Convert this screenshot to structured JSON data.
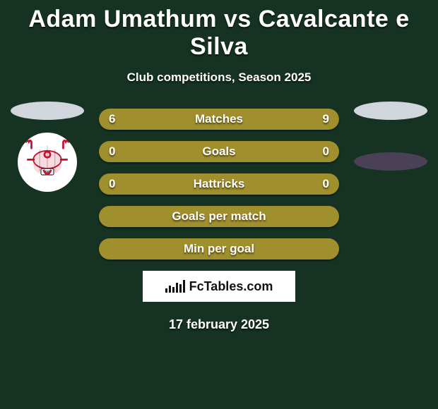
{
  "title": "Adam Umathum vs Cavalcante e Silva",
  "subtitle": "Club competitions, Season 2025",
  "date": "17 february 2025",
  "site_logo_text": "FcTables.com",
  "colors": {
    "background": "#163223",
    "left_player": "#d0d6db",
    "right_player": "#4a4057",
    "bar_fill": "#a08f2d",
    "bar_bg": "#122a1d",
    "bar_shadow": "rgba(0,0,0,0.4)"
  },
  "left_badge": {
    "bg": "#ffffff",
    "accent": "#c8102e",
    "text": "#000000"
  },
  "bars": [
    {
      "label": "Matches",
      "left_value": "6",
      "right_value": "9",
      "left_pct": 40,
      "right_pct": 60,
      "show_values": true,
      "split": true
    },
    {
      "label": "Goals",
      "left_value": "0",
      "right_value": "0",
      "left_pct": 0,
      "right_pct": 0,
      "show_values": true,
      "split": false,
      "full": true
    },
    {
      "label": "Hattricks",
      "left_value": "0",
      "right_value": "0",
      "left_pct": 0,
      "right_pct": 0,
      "show_values": true,
      "split": false,
      "full": true
    },
    {
      "label": "Goals per match",
      "left_value": "",
      "right_value": "",
      "left_pct": 0,
      "right_pct": 0,
      "show_values": false,
      "split": false,
      "full": true
    },
    {
      "label": "Min per goal",
      "left_value": "",
      "right_value": "",
      "left_pct": 0,
      "right_pct": 0,
      "show_values": false,
      "split": false,
      "full": true
    }
  ]
}
